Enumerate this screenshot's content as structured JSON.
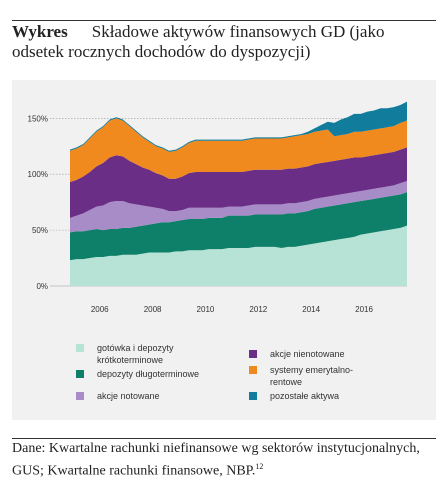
{
  "header": {
    "lead": "Wykres",
    "title": "Składowe aktywów finansowych GD (jako odsetek rocznych dochodów do dyspozycji)"
  },
  "footer": {
    "source": "Dane: Kwartalne rachunki niefinansowe wg sektorów instytucjonalnych, GUS; Kwartalne rachunki finansowe, NBP.",
    "footnote": "12"
  },
  "chart_data": {
    "type": "area",
    "stacked": true,
    "x_start": "2005Q1",
    "x_end": "2016Q4",
    "x_ticks": [
      "2006",
      "2008",
      "2010",
      "2012",
      "2014",
      "2016"
    ],
    "y_ticks": [
      "0%",
      "50%",
      "100%",
      "150%"
    ],
    "ylim": [
      0,
      170
    ],
    "grid": "horizontal, dashed",
    "legend_position": "bottom",
    "colors": {
      "gotowka": "#b6e3d6",
      "depozyty": "#0e8069",
      "notowane": "#a88cc8",
      "nienotowane": "#6a2e86",
      "emerytalne": "#f08a1e",
      "pozostale": "#127c9c"
    },
    "series": [
      {
        "key": "gotowka",
        "name": "gotówka i depozyty krótkoterminowe",
        "values": [
          23,
          24,
          24,
          25,
          26,
          26,
          27,
          27,
          28,
          28,
          28,
          29,
          30,
          30,
          30,
          30,
          31,
          31,
          32,
          32,
          32,
          33,
          33,
          33,
          34,
          34,
          34,
          34,
          35,
          35,
          35,
          35,
          34,
          35,
          35,
          36,
          37,
          38,
          39,
          40,
          41,
          42,
          43,
          44,
          46,
          47,
          48,
          49,
          50,
          51,
          52,
          54
        ]
      },
      {
        "key": "depozyty",
        "name": "depozyty długoterminowe",
        "values": [
          25,
          25,
          25,
          25,
          25,
          24,
          24,
          24,
          24,
          24,
          25,
          25,
          25,
          26,
          27,
          27,
          27,
          28,
          28,
          28,
          28,
          28,
          28,
          28,
          29,
          29,
          29,
          29,
          29,
          29,
          29,
          29,
          30,
          30,
          30,
          30,
          30,
          31,
          31,
          31,
          31,
          31,
          31,
          31,
          30,
          30,
          30,
          30,
          30,
          30,
          30,
          30
        ]
      },
      {
        "key": "notowane",
        "name": "akcje notowane",
        "values": [
          13,
          14,
          16,
          18,
          20,
          22,
          24,
          25,
          24,
          22,
          20,
          18,
          16,
          14,
          12,
          10,
          9,
          9,
          10,
          10,
          10,
          9,
          9,
          9,
          8,
          8,
          8,
          9,
          9,
          9,
          9,
          9,
          9,
          9,
          9,
          9,
          9,
          9,
          9,
          9,
          9,
          9,
          9,
          9,
          9,
          9,
          9,
          9,
          9,
          9,
          10,
          10
        ]
      },
      {
        "key": "nienotowane",
        "name": "akcje nienotowane",
        "values": [
          32,
          32,
          33,
          34,
          36,
          38,
          40,
          41,
          40,
          38,
          36,
          34,
          33,
          31,
          30,
          29,
          29,
          30,
          31,
          32,
          32,
          32,
          32,
          32,
          31,
          31,
          31,
          31,
          31,
          31,
          31,
          31,
          31,
          31,
          31,
          31,
          31,
          31,
          31,
          31,
          31,
          31,
          31,
          31,
          30,
          30,
          30,
          30,
          30,
          30,
          30,
          30
        ]
      },
      {
        "key": "emerytalne",
        "name": "systemy emerytalno-rentowe",
        "values": [
          28,
          28,
          28,
          30,
          31,
          32,
          33,
          33,
          32,
          31,
          29,
          27,
          25,
          24,
          24,
          24,
          25,
          26,
          27,
          28,
          28,
          28,
          28,
          28,
          28,
          28,
          28,
          28,
          28,
          28,
          28,
          28,
          28,
          28,
          29,
          29,
          29,
          29,
          29,
          29,
          22,
          22,
          22,
          23,
          23,
          23,
          23,
          23,
          23,
          23,
          24,
          24
        ]
      },
      {
        "key": "pozostale",
        "name": "pozostałe aktywa",
        "values": [
          1,
          1,
          1,
          1,
          1,
          1,
          1,
          1,
          1,
          1,
          1,
          1,
          1,
          1,
          1,
          1,
          1,
          1,
          1,
          1,
          1,
          1,
          1,
          1,
          1,
          1,
          1,
          1,
          1,
          1,
          1,
          1,
          1,
          1,
          1,
          1,
          2,
          3,
          5,
          7,
          12,
          14,
          15,
          16,
          16,
          17,
          17,
          18,
          17,
          17,
          16,
          17
        ]
      }
    ]
  }
}
